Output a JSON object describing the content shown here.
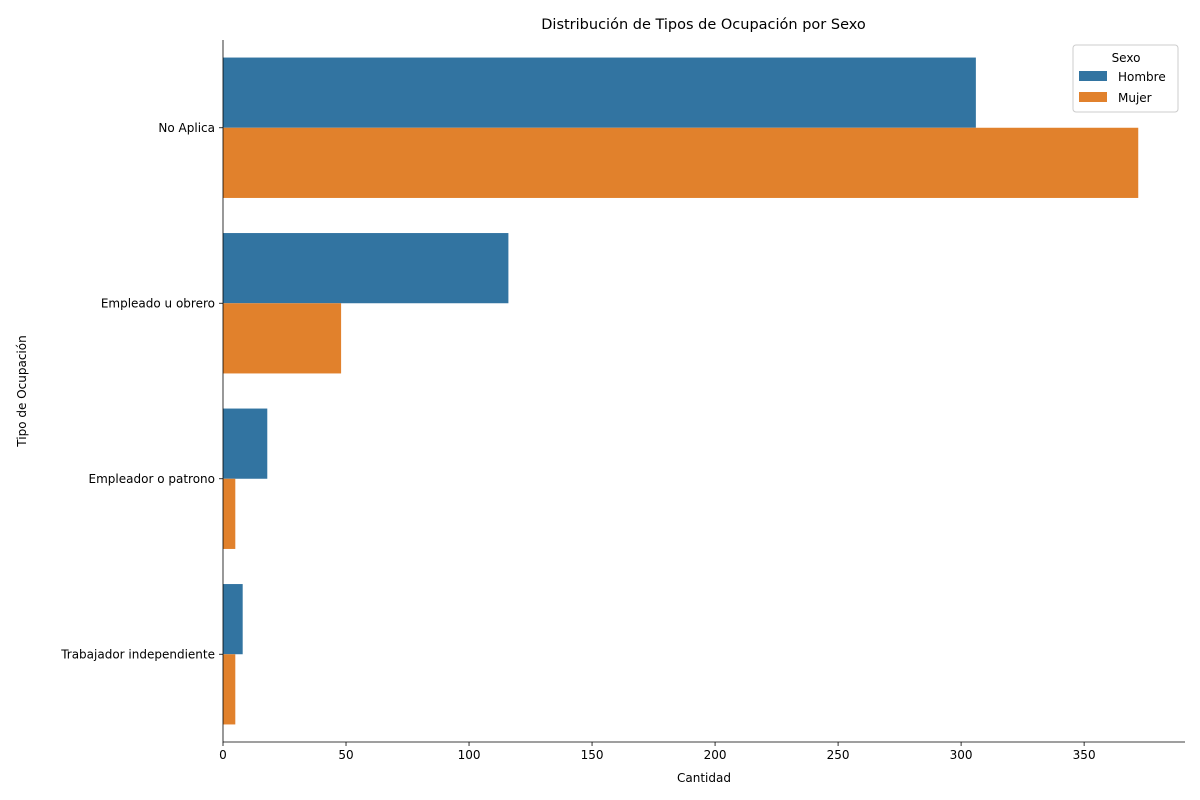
{
  "chart_data": {
    "type": "bar",
    "orientation": "horizontal",
    "title": "Distribución de Tipos de Ocupación por Sexo",
    "xlabel": "Cantidad",
    "ylabel": "Tipo de Ocupación",
    "categories": [
      "No Aplica",
      "Empleado u obrero",
      "Empleador o patrono",
      "Trabajador independiente"
    ],
    "series": [
      {
        "name": "Hombre",
        "color": "#3274a1",
        "values": [
          306,
          116,
          18,
          8
        ]
      },
      {
        "name": "Mujer",
        "color": "#e1812c",
        "values": [
          372,
          48,
          5,
          5
        ]
      }
    ],
    "xlim": [
      0,
      391
    ],
    "xticks": [
      0,
      50,
      100,
      150,
      200,
      250,
      300,
      350
    ],
    "grid": false,
    "legend": {
      "title": "Sexo",
      "placement": "top-right"
    }
  }
}
